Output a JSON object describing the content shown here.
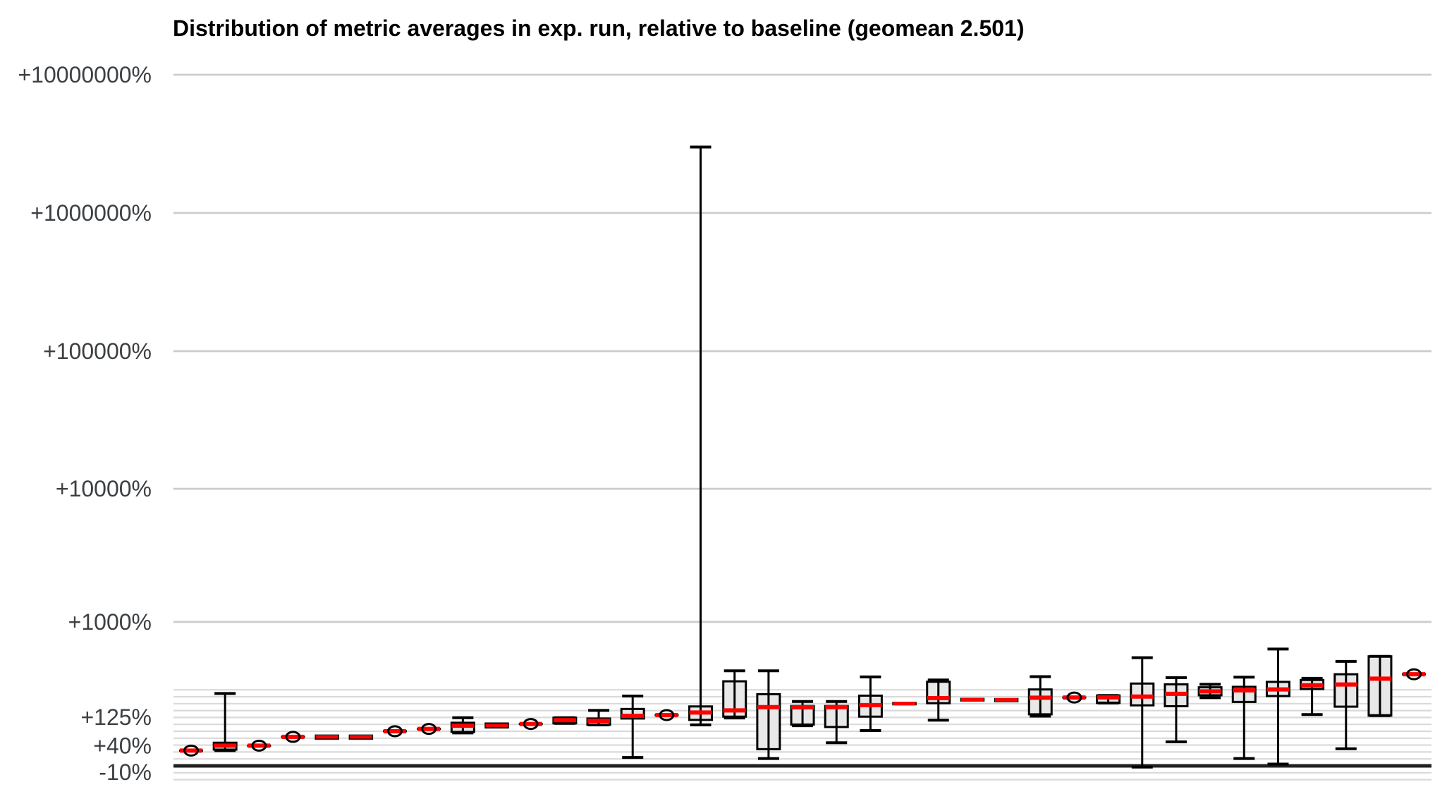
{
  "chart_data": {
    "type": "boxplot",
    "title": "Distribution of metric averages in exp. run, relative to baseline (geomean 2.501)",
    "geomean": 2.501,
    "legend": "none",
    "grid": "on",
    "colors": {
      "median": "#ff0000",
      "box_fill": "#e8e8e8",
      "box_stroke": "#000000",
      "grid_major": "#cccccc",
      "grid_minor": "#d9d9d9",
      "baseline": "#212121",
      "tick_label": "#3c4043",
      "title": "#000000",
      "background": "#ffffff"
    },
    "y_axis": {
      "scale": "log10(1 + pct/100)",
      "unit": "percent change vs baseline",
      "baseline_pct": 0,
      "tick_labels": [
        {
          "label": "+10000000%",
          "pct": 10000000
        },
        {
          "label": "+1000000%",
          "pct": 1000000
        },
        {
          "label": "+100000%",
          "pct": 100000
        },
        {
          "label": "+10000%",
          "pct": 10000
        },
        {
          "label": "+1000%",
          "pct": 1000
        },
        {
          "label": "+125%",
          "pct": 125
        },
        {
          "label": "+40%",
          "pct": 40
        },
        {
          "label": "-10%",
          "pct": -10
        }
      ],
      "major_gridline_pcts": [
        10000000,
        1000000,
        100000,
        10000,
        1000
      ],
      "minor_gridline_pcts": [
        -20.6,
        -10.9,
        12.2,
        25.9,
        41.3,
        58.5,
        77.8,
        99.5,
        123.9,
        151.2,
        181.8,
        216.2,
        254.8
      ]
    },
    "boxes": [
      {
        "type": "dot",
        "med": 29
      },
      {
        "type": "box",
        "lo": 29,
        "q1": 31,
        "med": 40,
        "q3": 47,
        "hi": 234
      },
      {
        "type": "dot",
        "med": 40
      },
      {
        "type": "dot",
        "med": 62
      },
      {
        "type": "flat",
        "q1": 57,
        "med": 62,
        "q3": 66
      },
      {
        "type": "flat",
        "q1": 57,
        "med": 62,
        "q3": 66
      },
      {
        "type": "dot",
        "med": 78
      },
      {
        "type": "dot",
        "med": 85
      },
      {
        "type": "box",
        "lo": 73,
        "q1": 76,
        "med": 95,
        "q3": 105,
        "hi": 123
      },
      {
        "type": "flat",
        "q1": 89,
        "med": 96,
        "q3": 103
      },
      {
        "type": "dot",
        "med": 101
      },
      {
        "type": "box",
        "lo": 103,
        "q1": 103,
        "med": 114,
        "q3": 123,
        "hi": 123
      },
      {
        "type": "box",
        "lo": 98,
        "q1": 98,
        "med": 112,
        "q3": 120,
        "hi": 152
      },
      {
        "type": "box",
        "lo": 15,
        "q1": 120,
        "med": 130,
        "q3": 158,
        "hi": 220
      },
      {
        "type": "dot",
        "med": 133
      },
      {
        "type": "box",
        "lo": 98,
        "q1": 115,
        "med": 143,
        "q3": 169,
        "hi": 3000000
      },
      {
        "type": "box",
        "lo": 122,
        "q1": 127,
        "med": 152,
        "q3": 309,
        "hi": 387
      },
      {
        "type": "box",
        "lo": 13,
        "q1": 32,
        "med": 166,
        "q3": 230,
        "hi": 387
      },
      {
        "type": "box",
        "lo": 95,
        "q1": 99,
        "med": 165,
        "q3": 171,
        "hi": 192
      },
      {
        "type": "box",
        "lo": 47,
        "q1": 91,
        "med": 166,
        "q3": 171,
        "hi": 192
      },
      {
        "type": "box",
        "lo": 80,
        "q1": 127,
        "med": 175,
        "q3": 222,
        "hi": 340
      },
      {
        "type": "flat",
        "q1": 178,
        "med": 182,
        "q3": 186
      },
      {
        "type": "box",
        "lo": 114,
        "q1": 184,
        "med": 209,
        "q3": 306,
        "hi": 318
      },
      {
        "type": "flat",
        "q1": 196,
        "med": 201,
        "q3": 206
      },
      {
        "type": "flat",
        "q1": 193,
        "med": 200,
        "q3": 205
      },
      {
        "type": "box",
        "lo": 129,
        "q1": 136,
        "med": 211,
        "q3": 257,
        "hi": 342
      },
      {
        "type": "dot",
        "med": 212
      },
      {
        "type": "box",
        "lo": 185,
        "q1": 185,
        "med": 213,
        "q3": 223,
        "hi": 223
      },
      {
        "type": "box",
        "lo": -2,
        "q1": 174,
        "med": 217,
        "q3": 294,
        "hi": 506
      },
      {
        "type": "box",
        "lo": 49,
        "q1": 170,
        "med": 232,
        "q3": 289,
        "hi": 334
      },
      {
        "type": "box",
        "lo": 211,
        "q1": 224,
        "med": 246,
        "q3": 270,
        "hi": 289
      },
      {
        "type": "box",
        "lo": 13,
        "q1": 190,
        "med": 252,
        "q3": 273,
        "hi": 338
      },
      {
        "type": "box",
        "lo": 3,
        "q1": 220,
        "med": 257,
        "q3": 305,
        "hi": 600
      },
      {
        "type": "box",
        "lo": 135,
        "q1": 260,
        "med": 283,
        "q3": 318,
        "hi": 330
      },
      {
        "type": "box",
        "lo": 33,
        "q1": 168,
        "med": 288,
        "q3": 360,
        "hi": 470
      },
      {
        "type": "box",
        "lo": 131,
        "q1": 131,
        "med": 327,
        "q3": 520,
        "hi": 520
      },
      {
        "type": "dot",
        "med": 360
      }
    ]
  }
}
